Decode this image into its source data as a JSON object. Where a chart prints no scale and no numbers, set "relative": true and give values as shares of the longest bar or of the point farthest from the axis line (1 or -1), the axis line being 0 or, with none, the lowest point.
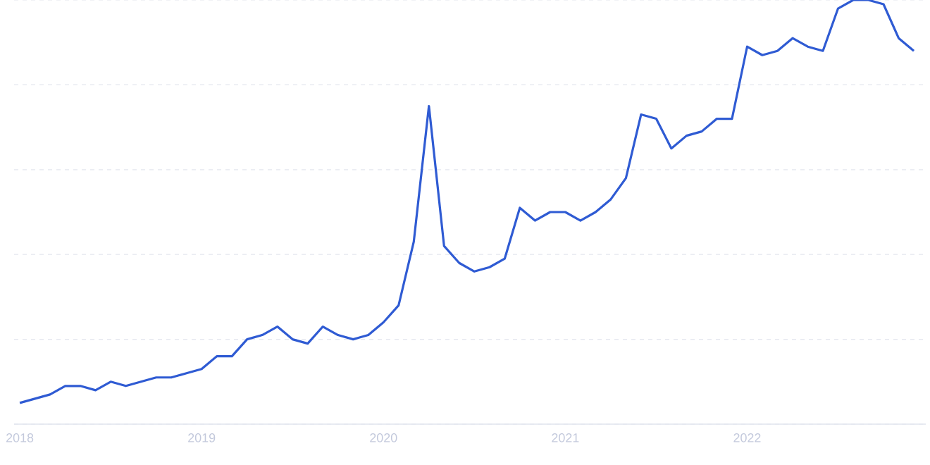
{
  "chart_data": {
    "type": "line",
    "relative": true,
    "grid": "y",
    "line_style": "solid",
    "marker": "none",
    "tick_labels": "x",
    "x": [
      "2018-01",
      "2018-02",
      "2018-03",
      "2018-04",
      "2018-05",
      "2018-06",
      "2018-07",
      "2018-08",
      "2018-09",
      "2018-10",
      "2018-11",
      "2018-12",
      "2019-01",
      "2019-02",
      "2019-03",
      "2019-04",
      "2019-05",
      "2019-06",
      "2019-07",
      "2019-08",
      "2019-09",
      "2019-10",
      "2019-11",
      "2019-12",
      "2020-01",
      "2020-02",
      "2020-03",
      "2020-04",
      "2020-05",
      "2020-06",
      "2020-07",
      "2020-08",
      "2020-09",
      "2020-10",
      "2020-11",
      "2020-12",
      "2021-01",
      "2021-02",
      "2021-03",
      "2021-04",
      "2021-05",
      "2021-06",
      "2021-07",
      "2021-08",
      "2021-09",
      "2021-10",
      "2021-11",
      "2021-12",
      "2022-01",
      "2022-02",
      "2022-03",
      "2022-04",
      "2022-05",
      "2022-06",
      "2022-07",
      "2022-08",
      "2022-09",
      "2022-10",
      "2022-11",
      "2022-12"
    ],
    "series": [
      {
        "color": "#2f5bd3",
        "values": [
          0.05,
          0.06,
          0.07,
          0.09,
          0.09,
          0.08,
          0.1,
          0.09,
          0.1,
          0.11,
          0.11,
          0.12,
          0.13,
          0.16,
          0.16,
          0.2,
          0.21,
          0.23,
          0.2,
          0.19,
          0.23,
          0.21,
          0.2,
          0.21,
          0.24,
          0.28,
          0.43,
          0.75,
          0.42,
          0.38,
          0.36,
          0.37,
          0.39,
          0.51,
          0.48,
          0.5,
          0.5,
          0.48,
          0.5,
          0.53,
          0.58,
          0.73,
          0.72,
          0.65,
          0.68,
          0.69,
          0.72,
          0.72,
          0.89,
          0.87,
          0.88,
          0.91,
          0.89,
          0.88,
          0.98,
          1.0,
          1.0,
          0.99,
          0.91,
          0.88
        ]
      }
    ],
    "xlim": [
      "2017-12-20",
      "2022-12-25"
    ],
    "xticks": [
      {
        "value": "2018-01",
        "label": "2018"
      },
      {
        "value": "2019-01",
        "label": "2019"
      },
      {
        "value": "2020-01",
        "label": "2020"
      },
      {
        "value": "2021-01",
        "label": "2021"
      },
      {
        "value": "2022-01",
        "label": "2022"
      }
    ]
  }
}
